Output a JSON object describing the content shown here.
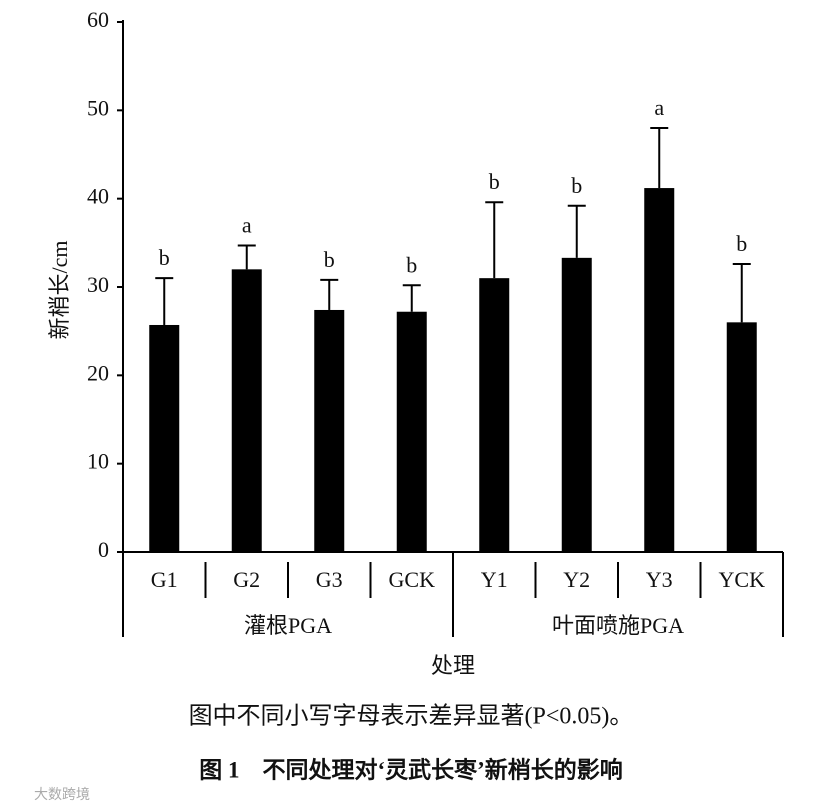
{
  "chart_data": {
    "type": "bar",
    "y_label": "新梢长/cm",
    "x_label": "处理",
    "ylim": [
      0,
      60
    ],
    "yticks": [
      0,
      10,
      20,
      30,
      40,
      50,
      60
    ],
    "color": "#000000",
    "groups": [
      {
        "name": "灌根PGA",
        "categories": [
          "G1",
          "G2",
          "G3",
          "GCK"
        ],
        "values": [
          25.7,
          32,
          27.4,
          27.2
        ],
        "errors": [
          5.3,
          2.7,
          3.4,
          3.0
        ],
        "letters": [
          "b",
          "a",
          "b",
          "b"
        ]
      },
      {
        "name": "叶面喷施PGA",
        "categories": [
          "Y1",
          "Y2",
          "Y3",
          "YCK"
        ],
        "values": [
          31,
          33.3,
          41.2,
          26
        ],
        "errors": [
          8.6,
          5.9,
          6.8,
          6.6
        ],
        "letters": [
          "b",
          "b",
          "a",
          "b"
        ]
      }
    ],
    "note": "图中不同小写字母表示差异显著(P<0.05)。",
    "caption": "图 1　不同处理对‘灵武长枣’新梢长的影响"
  },
  "watermark": "大数跨境"
}
